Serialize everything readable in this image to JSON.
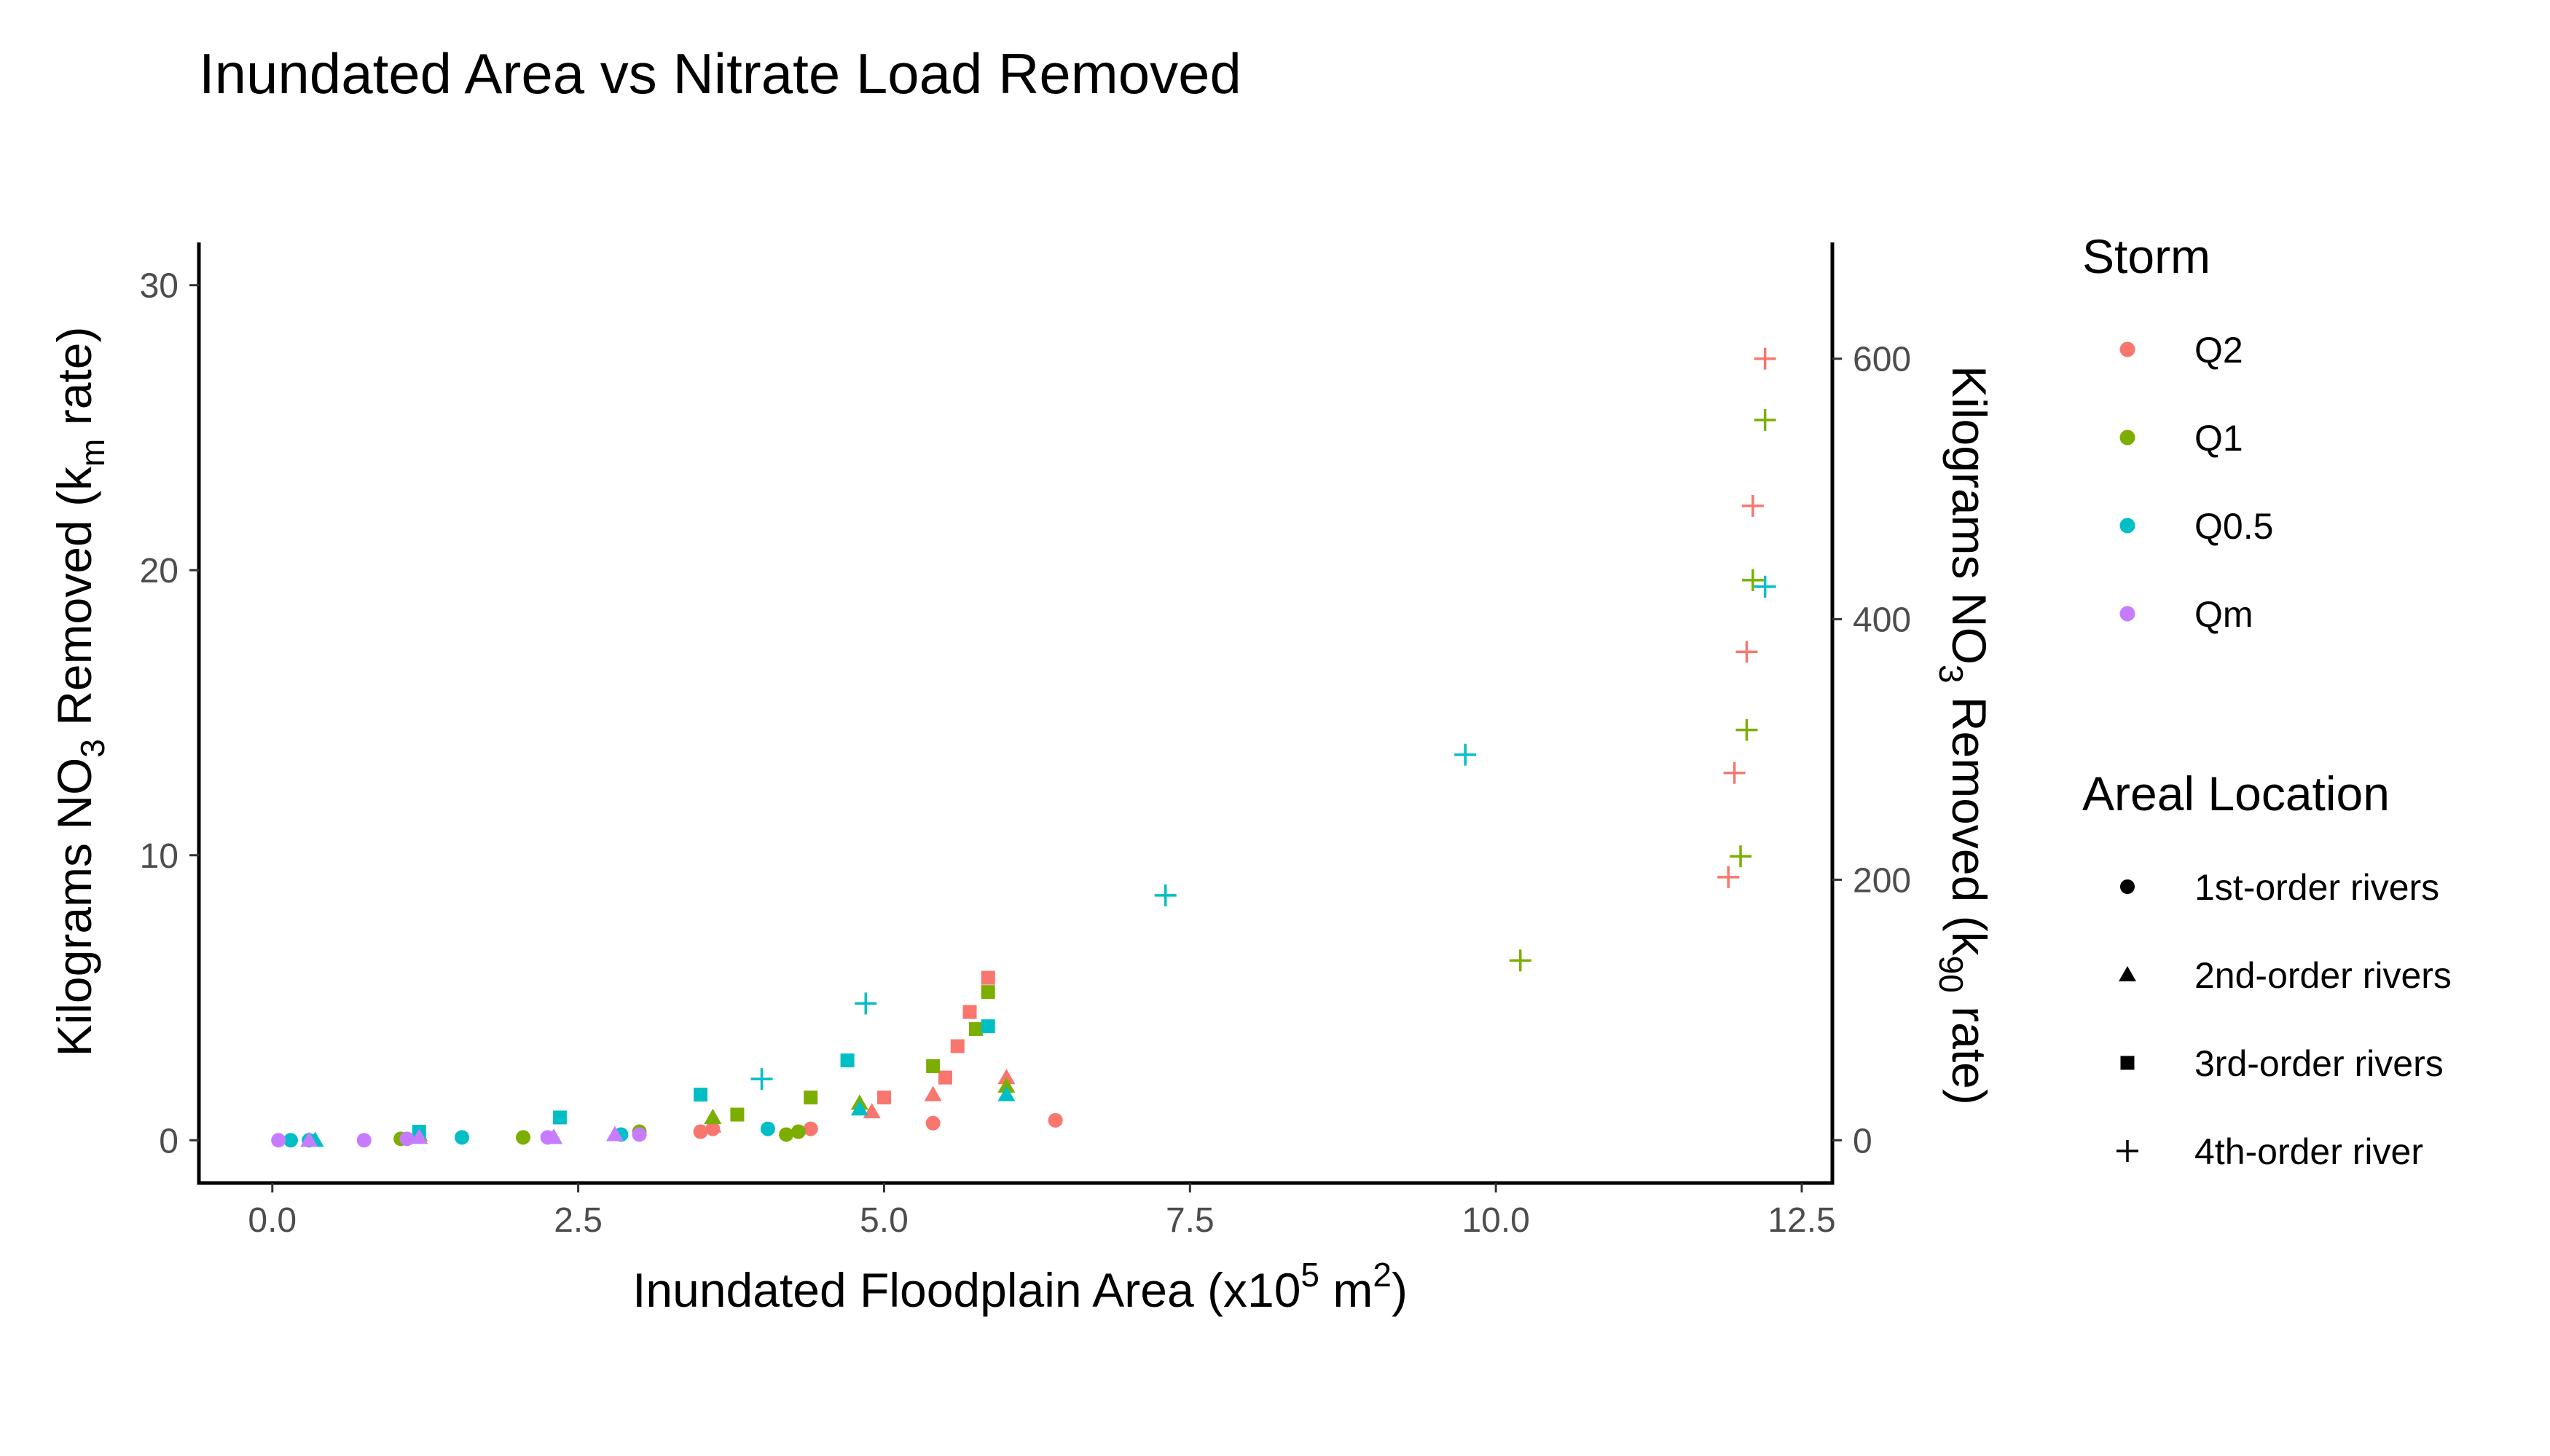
{
  "chart_data": {
    "type": "scatter",
    "title": "Inundated Area vs Nitrate Load Removed",
    "x_axis": {
      "label": {
        "pre": "Inundated Floodplain Area (x10",
        "sup1": "5",
        "mid": " m",
        "sup2": "2",
        "post": ")"
      },
      "range": [
        -0.6,
        12.75
      ],
      "ticks": [
        0.0,
        2.5,
        5.0,
        7.5,
        10.0,
        12.5
      ],
      "tick_labels": [
        "0.0",
        "2.5",
        "5.0",
        "7.5",
        "10.0",
        "12.5"
      ]
    },
    "y_axis_left": {
      "label": {
        "pre": "Kilograms NO",
        "sub1": "3",
        "mid": " Removed (k",
        "sub2": "m",
        "post": " rate)"
      },
      "range": [
        -1.5,
        31.5
      ],
      "ticks": [
        0,
        10,
        20,
        30
      ],
      "tick_labels": [
        "0",
        "10",
        "20",
        "30"
      ]
    },
    "y_axis_right": {
      "label": {
        "pre": "Kilograms NO",
        "sub1": "3",
        "mid": " Removed (k",
        "sub2": "90",
        "post": " rate)"
      },
      "ticks": [
        0,
        200,
        400,
        600
      ],
      "tick_labels": [
        "0",
        "200",
        "400",
        "600"
      ],
      "scale_to_left": 0.0457
    },
    "grid": false,
    "legend_placement": "right",
    "legends": {
      "storm": {
        "title": "Storm",
        "items": [
          {
            "key": "Q2",
            "label": "Q2",
            "color": "#F8766D"
          },
          {
            "key": "Q1",
            "label": "Q1",
            "color": "#7CAE00"
          },
          {
            "key": "Q0.5",
            "label": "Q0.5",
            "color": "#00BFC4"
          },
          {
            "key": "Qm",
            "label": "Qm",
            "color": "#C77CFF"
          }
        ]
      },
      "location": {
        "title": "Areal Location",
        "items": [
          {
            "key": "circle",
            "label": "1st-order rivers"
          },
          {
            "key": "triangle",
            "label": "2nd-order rivers"
          },
          {
            "key": "square",
            "label": "3rd-order rivers"
          },
          {
            "key": "plus",
            "label": "4th-order river"
          }
        ]
      }
    },
    "series": [
      {
        "storm": "Q2",
        "shape": "circle",
        "points": [
          [
            3.5,
            0.3
          ],
          [
            3.6,
            0.4
          ],
          [
            4.4,
            0.4
          ],
          [
            5.4,
            0.6
          ],
          [
            6.4,
            0.7
          ]
        ]
      },
      {
        "storm": "Q2",
        "shape": "triangle",
        "points": [
          [
            3.6,
            0.5
          ],
          [
            4.9,
            1.0
          ],
          [
            5.4,
            1.6
          ],
          [
            6.0,
            2.2
          ]
        ]
      },
      {
        "storm": "Q2",
        "shape": "square",
        "points": [
          [
            5.0,
            1.5
          ],
          [
            5.5,
            2.2
          ],
          [
            5.6,
            3.3
          ],
          [
            5.7,
            4.5
          ],
          [
            5.85,
            5.7
          ]
        ]
      },
      {
        "storm": "Q2",
        "shape": "plus",
        "y_axis": "right",
        "points": [
          [
            11.9,
            202
          ],
          [
            11.95,
            282
          ],
          [
            12.05,
            375
          ],
          [
            12.1,
            487
          ],
          [
            12.2,
            600
          ]
        ]
      },
      {
        "storm": "Q1",
        "shape": "circle",
        "points": [
          [
            1.05,
            0.05
          ],
          [
            2.05,
            0.1
          ],
          [
            3.0,
            0.3
          ],
          [
            4.2,
            0.2
          ],
          [
            4.3,
            0.3
          ]
        ]
      },
      {
        "storm": "Q1",
        "shape": "triangle",
        "points": [
          [
            1.2,
            0.2
          ],
          [
            3.6,
            0.8
          ],
          [
            4.8,
            1.3
          ],
          [
            6.0,
            1.9
          ]
        ]
      },
      {
        "storm": "Q1",
        "shape": "square",
        "points": [
          [
            3.8,
            0.9
          ],
          [
            4.4,
            1.5
          ],
          [
            5.4,
            2.6
          ],
          [
            5.75,
            3.9
          ],
          [
            5.85,
            5.2
          ]
        ]
      },
      {
        "storm": "Q1",
        "shape": "plus",
        "y_axis": "right",
        "points": [
          [
            10.2,
            138
          ],
          [
            12.0,
            218
          ],
          [
            12.05,
            315
          ],
          [
            12.1,
            430
          ],
          [
            12.2,
            553
          ]
        ]
      },
      {
        "storm": "Q0.5",
        "shape": "circle",
        "points": [
          [
            0.15,
            0.0
          ],
          [
            0.3,
            0.0
          ],
          [
            1.55,
            0.1
          ],
          [
            2.85,
            0.2
          ],
          [
            4.05,
            0.4
          ]
        ]
      },
      {
        "storm": "Q0.5",
        "shape": "triangle",
        "points": [
          [
            0.35,
            0.0
          ],
          [
            2.3,
            0.1
          ],
          [
            4.8,
            1.1
          ],
          [
            6.0,
            1.6
          ]
        ]
      },
      {
        "storm": "Q0.5",
        "shape": "square",
        "points": [
          [
            1.2,
            0.3
          ],
          [
            2.35,
            0.8
          ],
          [
            3.5,
            1.6
          ],
          [
            4.7,
            2.8
          ],
          [
            5.85,
            4.0
          ]
        ]
      },
      {
        "storm": "Q0.5",
        "shape": "plus",
        "y_axis": "right",
        "points": [
          [
            4.0,
            47
          ],
          [
            4.85,
            105
          ],
          [
            7.3,
            188
          ],
          [
            9.75,
            296
          ],
          [
            12.2,
            425
          ]
        ]
      },
      {
        "storm": "Qm",
        "shape": "circle",
        "points": [
          [
            0.05,
            0.0
          ],
          [
            0.75,
            0.0
          ],
          [
            1.1,
            0.05
          ],
          [
            2.25,
            0.1
          ],
          [
            3.0,
            0.2
          ]
        ]
      },
      {
        "storm": "Qm",
        "shape": "triangle",
        "points": [
          [
            0.3,
            0.0
          ],
          [
            1.2,
            0.1
          ],
          [
            2.3,
            0.1
          ],
          [
            2.8,
            0.2
          ]
        ]
      },
      {
        "storm": "Qm",
        "shape": "square",
        "points": []
      },
      {
        "storm": "Qm",
        "shape": "plus",
        "points": []
      }
    ]
  }
}
